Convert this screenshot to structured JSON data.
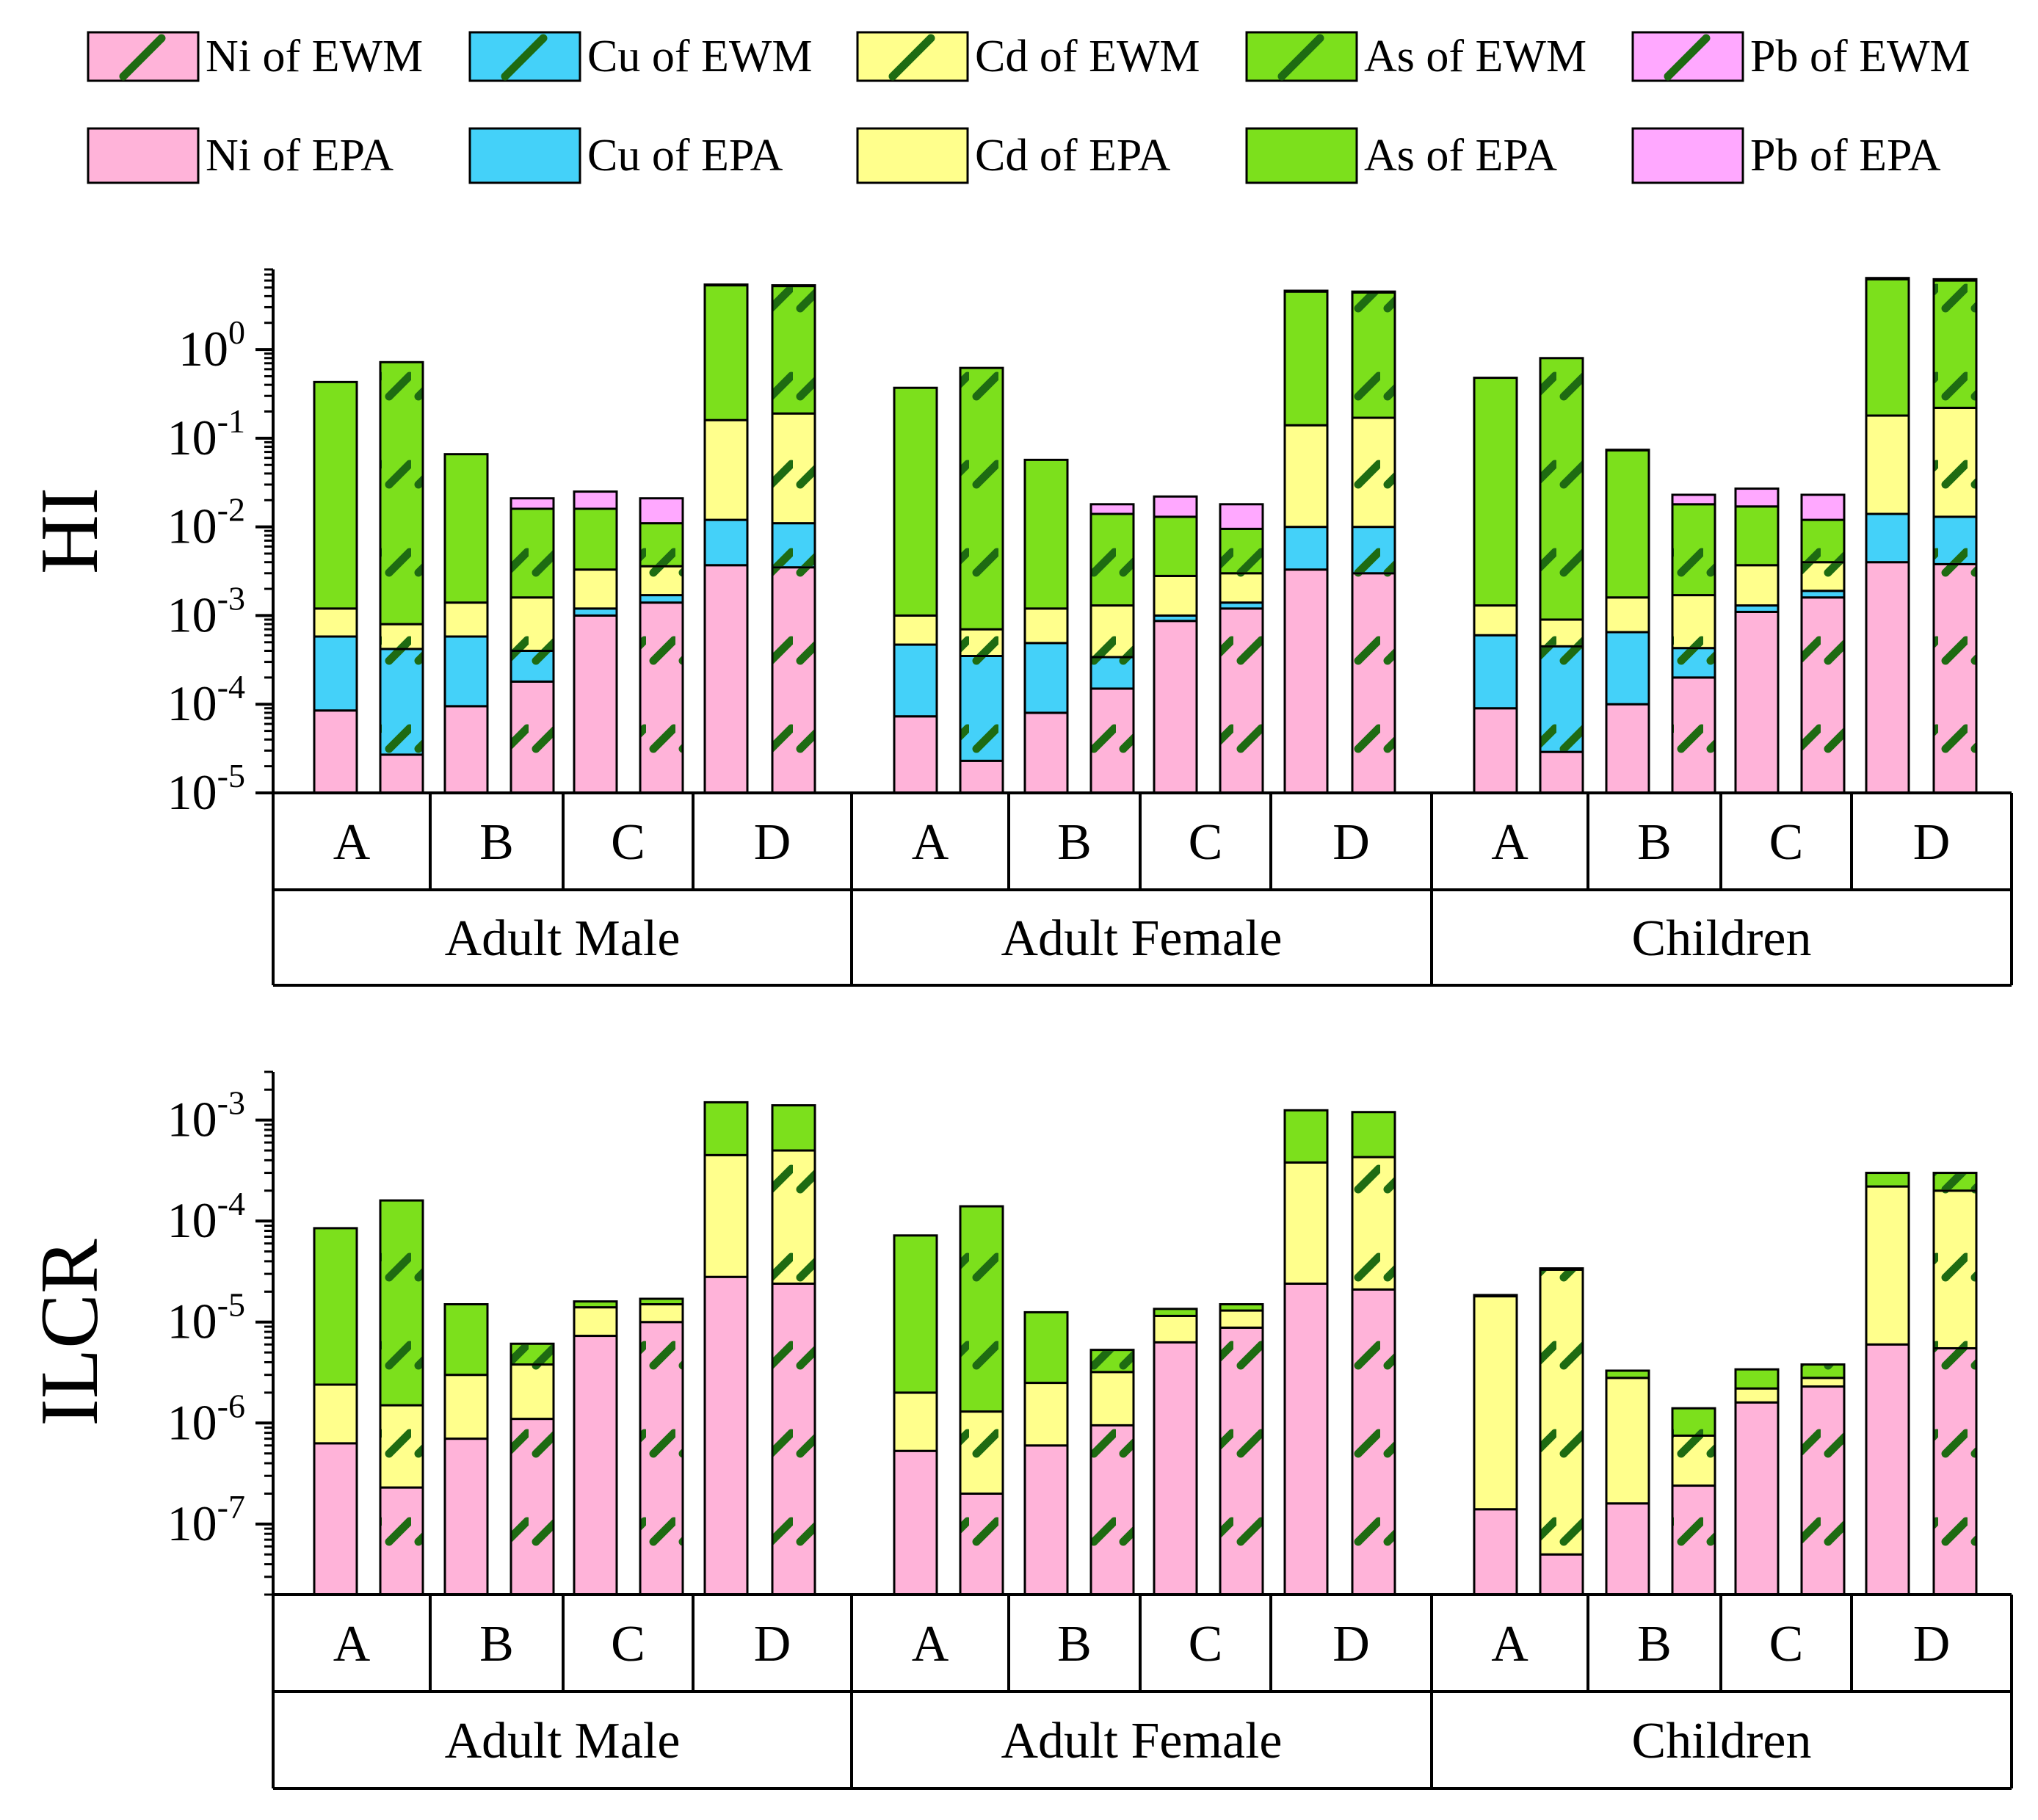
{
  "legend": {
    "ewm": [
      {
        "label": "Ni of EWM",
        "color": "#ffb3d9"
      },
      {
        "label": "Cu of EWM",
        "color": "#44d1f9"
      },
      {
        "label": "Cd of EWM",
        "color": "#ffff8c"
      },
      {
        "label": "As of EWM",
        "color": "#7ce01c"
      },
      {
        "label": "Pb of EWM",
        "color": "#ffa8ff"
      }
    ],
    "epa": [
      {
        "label": "Ni of EPA",
        "color": "#ffb3d9"
      },
      {
        "label": "Cu of EPA",
        "color": "#44d1f9"
      },
      {
        "label": "Cd of EPA",
        "color": "#ffff8c"
      },
      {
        "label": "As of EPA",
        "color": "#7ce01c"
      },
      {
        "label": "Pb of EPA",
        "color": "#ffa8ff"
      }
    ],
    "hatch_color": "#1e6b12"
  },
  "chart_data": [
    {
      "type": "bar",
      "stacked": true,
      "yscale": "log",
      "ylabel": "HI",
      "ylim": [
        1e-05,
        8
      ],
      "yticks": [
        1e-05,
        0.0001,
        0.001,
        0.01,
        0.1,
        1
      ],
      "ytick_labels": [
        {
          "base": "10",
          "exp": "-5"
        },
        {
          "base": "10",
          "exp": "-4"
        },
        {
          "base": "10",
          "exp": "-3"
        },
        {
          "base": "10",
          "exp": "-2"
        },
        {
          "base": "10",
          "exp": "-1"
        },
        {
          "base": "10",
          "exp": "0"
        }
      ],
      "groups": [
        "Adult Male",
        "Adult Female",
        "Children"
      ],
      "subgroups": [
        "A",
        "B",
        "C",
        "D"
      ],
      "bar_order": [
        "EPA",
        "EWM"
      ],
      "series_order": [
        "Ni",
        "Cu",
        "Cd",
        "As",
        "Pb"
      ],
      "bars": [
        {
          "group": "Adult Male",
          "site": "A",
          "method": "EPA",
          "cum": [
            8.5e-05,
            0.00058,
            0.0012,
            0.43,
            0.43
          ]
        },
        {
          "group": "Adult Male",
          "site": "A",
          "method": "EWM",
          "cum": [
            2.7e-05,
            0.00042,
            0.0008,
            0.72,
            0.72
          ]
        },
        {
          "group": "Adult Male",
          "site": "B",
          "method": "EPA",
          "cum": [
            9.5e-05,
            0.00058,
            0.0014,
            0.066,
            0.066
          ]
        },
        {
          "group": "Adult Male",
          "site": "B",
          "method": "EWM",
          "cum": [
            0.00018,
            0.0004,
            0.0016,
            0.016,
            0.021
          ]
        },
        {
          "group": "Adult Male",
          "site": "C",
          "method": "EPA",
          "cum": [
            0.001,
            0.0012,
            0.0033,
            0.016,
            0.025
          ]
        },
        {
          "group": "Adult Male",
          "site": "C",
          "method": "EWM",
          "cum": [
            0.0014,
            0.0017,
            0.0036,
            0.011,
            0.021
          ]
        },
        {
          "group": "Adult Male",
          "site": "D",
          "method": "EPA",
          "cum": [
            0.0037,
            0.012,
            0.16,
            5.3,
            5.4
          ]
        },
        {
          "group": "Adult Male",
          "site": "D",
          "method": "EWM",
          "cum": [
            0.0035,
            0.011,
            0.19,
            5.2,
            5.3
          ]
        },
        {
          "group": "Adult Female",
          "site": "A",
          "method": "EPA",
          "cum": [
            7.3e-05,
            0.00047,
            0.001,
            0.37,
            0.37
          ]
        },
        {
          "group": "Adult Female",
          "site": "A",
          "method": "EWM",
          "cum": [
            2.3e-05,
            0.00035,
            0.0007,
            0.62,
            0.62
          ]
        },
        {
          "group": "Adult Female",
          "site": "B",
          "method": "EPA",
          "cum": [
            8e-05,
            0.00049,
            0.0012,
            0.057,
            0.057
          ]
        },
        {
          "group": "Adult Female",
          "site": "B",
          "method": "EWM",
          "cum": [
            0.00015,
            0.00034,
            0.0013,
            0.014,
            0.018
          ]
        },
        {
          "group": "Adult Female",
          "site": "C",
          "method": "EPA",
          "cum": [
            0.00087,
            0.001,
            0.0028,
            0.013,
            0.022
          ]
        },
        {
          "group": "Adult Female",
          "site": "C",
          "method": "EWM",
          "cum": [
            0.0012,
            0.0014,
            0.003,
            0.0095,
            0.018
          ]
        },
        {
          "group": "Adult Female",
          "site": "D",
          "method": "EPA",
          "cum": [
            0.0033,
            0.01,
            0.14,
            4.5,
            4.6
          ]
        },
        {
          "group": "Adult Female",
          "site": "D",
          "method": "EWM",
          "cum": [
            0.003,
            0.01,
            0.17,
            4.4,
            4.5
          ]
        },
        {
          "group": "Children",
          "site": "A",
          "method": "EPA",
          "cum": [
            9e-05,
            0.0006,
            0.0013,
            0.48,
            0.48
          ]
        },
        {
          "group": "Children",
          "site": "A",
          "method": "EWM",
          "cum": [
            2.9e-05,
            0.00045,
            0.0009,
            0.8,
            0.8
          ]
        },
        {
          "group": "Children",
          "site": "B",
          "method": "EPA",
          "cum": [
            0.0001,
            0.00065,
            0.0016,
            0.073,
            0.074
          ]
        },
        {
          "group": "Children",
          "site": "B",
          "method": "EWM",
          "cum": [
            0.0002,
            0.00043,
            0.0017,
            0.018,
            0.023
          ]
        },
        {
          "group": "Children",
          "site": "C",
          "method": "EPA",
          "cum": [
            0.0011,
            0.0013,
            0.0037,
            0.017,
            0.027
          ]
        },
        {
          "group": "Children",
          "site": "C",
          "method": "EWM",
          "cum": [
            0.0016,
            0.0019,
            0.004,
            0.012,
            0.023
          ]
        },
        {
          "group": "Children",
          "site": "D",
          "method": "EPA",
          "cum": [
            0.004,
            0.014,
            0.18,
            6.2,
            6.4
          ]
        },
        {
          "group": "Children",
          "site": "D",
          "method": "EWM",
          "cum": [
            0.0038,
            0.013,
            0.22,
            6.0,
            6.2
          ]
        }
      ]
    },
    {
      "type": "bar",
      "stacked": true,
      "yscale": "log",
      "ylabel": "ILCR",
      "ylim": [
        2e-08,
        0.003
      ],
      "yticks": [
        1e-07,
        1e-06,
        1e-05,
        0.0001,
        0.001
      ],
      "ytick_labels": [
        {
          "base": "10",
          "exp": "-7"
        },
        {
          "base": "10",
          "exp": "-6"
        },
        {
          "base": "10",
          "exp": "-5"
        },
        {
          "base": "10",
          "exp": "-4"
        },
        {
          "base": "10",
          "exp": "-3"
        }
      ],
      "groups": [
        "Adult Male",
        "Adult Female",
        "Children"
      ],
      "subgroups": [
        "A",
        "B",
        "C",
        "D"
      ],
      "bar_order": [
        "EPA",
        "EWM"
      ],
      "series_order": [
        "Ni",
        "Cd",
        "As"
      ],
      "bars": [
        {
          "group": "Adult Male",
          "site": "A",
          "method": "EPA",
          "cum": [
            6.3e-07,
            2.4e-06,
            8.5e-05
          ]
        },
        {
          "group": "Adult Male",
          "site": "A",
          "method": "EWM",
          "cum": [
            2.3e-07,
            1.5e-06,
            0.00016
          ]
        },
        {
          "group": "Adult Male",
          "site": "B",
          "method": "EPA",
          "cum": [
            7e-07,
            3e-06,
            1.5e-05
          ]
        },
        {
          "group": "Adult Male",
          "site": "B",
          "method": "EWM",
          "cum": [
            1.1e-06,
            3.8e-06,
            6.1e-06
          ]
        },
        {
          "group": "Adult Male",
          "site": "C",
          "method": "EPA",
          "cum": [
            7.3e-06,
            1.4e-05,
            1.6e-05
          ]
        },
        {
          "group": "Adult Male",
          "site": "C",
          "method": "EWM",
          "cum": [
            1e-05,
            1.5e-05,
            1.7e-05
          ]
        },
        {
          "group": "Adult Male",
          "site": "D",
          "method": "EPA",
          "cum": [
            2.8e-05,
            0.00045,
            0.0015
          ]
        },
        {
          "group": "Adult Male",
          "site": "D",
          "method": "EWM",
          "cum": [
            2.4e-05,
            0.0005,
            0.0014
          ]
        },
        {
          "group": "Adult Female",
          "site": "A",
          "method": "EPA",
          "cum": [
            5.3e-07,
            2e-06,
            7.2e-05
          ]
        },
        {
          "group": "Adult Female",
          "site": "A",
          "method": "EWM",
          "cum": [
            2e-07,
            1.3e-06,
            0.00014
          ]
        },
        {
          "group": "Adult Female",
          "site": "B",
          "method": "EPA",
          "cum": [
            6e-07,
            2.5e-06,
            1.25e-05
          ]
        },
        {
          "group": "Adult Female",
          "site": "B",
          "method": "EWM",
          "cum": [
            9.5e-07,
            3.2e-06,
            5.3e-06
          ]
        },
        {
          "group": "Adult Female",
          "site": "C",
          "method": "EPA",
          "cum": [
            6.3e-06,
            1.15e-05,
            1.35e-05
          ]
        },
        {
          "group": "Adult Female",
          "site": "C",
          "method": "EWM",
          "cum": [
            8.8e-06,
            1.3e-05,
            1.5e-05
          ]
        },
        {
          "group": "Adult Female",
          "site": "D",
          "method": "EPA",
          "cum": [
            2.4e-05,
            0.00038,
            0.00125
          ]
        },
        {
          "group": "Adult Female",
          "site": "D",
          "method": "EWM",
          "cum": [
            2.1e-05,
            0.00043,
            0.0012
          ]
        },
        {
          "group": "Children",
          "site": "A",
          "method": "EPA",
          "cum": [
            1.4e-07,
            1.8e-05,
            1.85e-05
          ]
        },
        {
          "group": "Children",
          "site": "A",
          "method": "EWM",
          "cum": [
            5e-08,
            3.3e-05,
            3.4e-05
          ]
        },
        {
          "group": "Children",
          "site": "B",
          "method": "EPA",
          "cum": [
            1.6e-07,
            2.8e-06,
            3.3e-06
          ]
        },
        {
          "group": "Children",
          "site": "B",
          "method": "EWM",
          "cum": [
            2.4e-07,
            7.5e-07,
            1.4e-06
          ]
        },
        {
          "group": "Children",
          "site": "C",
          "method": "EPA",
          "cum": [
            1.6e-06,
            2.2e-06,
            3.4e-06
          ]
        },
        {
          "group": "Children",
          "site": "C",
          "method": "EWM",
          "cum": [
            2.3e-06,
            2.8e-06,
            3.8e-06
          ]
        },
        {
          "group": "Children",
          "site": "D",
          "method": "EPA",
          "cum": [
            6e-06,
            0.00022,
            0.0003
          ]
        },
        {
          "group": "Children",
          "site": "D",
          "method": "EWM",
          "cum": [
            5.5e-06,
            0.0002,
            0.0003
          ]
        }
      ]
    }
  ]
}
